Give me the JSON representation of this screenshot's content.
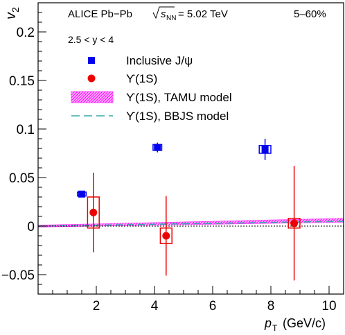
{
  "chart_data": {
    "type": "scatter",
    "header": {
      "collab": "ALICE Pb−Pb",
      "energy": "= 5.02 TeV",
      "sqrt_s": "s",
      "sqrt_s_sub": "NN",
      "centrality": "5–60%",
      "rapidity": "2.5 < y < 4"
    },
    "ylabel": {
      "main": "v",
      "sub": "2"
    },
    "xlabel": {
      "main": "p",
      "sub": "T",
      "unit": " (GeV/c)"
    },
    "xlim": [
      0,
      10.5
    ],
    "ylim": [
      -0.07,
      0.23
    ],
    "xticks": [
      {
        "value": 2,
        "label": "2"
      },
      {
        "value": 4,
        "label": "4"
      },
      {
        "value": 6,
        "label": "6"
      },
      {
        "value": 8,
        "label": "8"
      },
      {
        "value": 10,
        "label": "10"
      }
    ],
    "yticks": [
      {
        "value": -0.05,
        "label": "−0.05"
      },
      {
        "value": 0,
        "label": "0"
      },
      {
        "value": 0.05,
        "label": "0.05"
      },
      {
        "value": 0.1,
        "label": "0.1"
      },
      {
        "value": 0.15,
        "label": "0.15"
      },
      {
        "value": 0.2,
        "label": "0.2"
      }
    ],
    "legend": [
      {
        "label": "Inclusive J/ψ",
        "marker": "square",
        "color": "#0000ee"
      },
      {
        "label": "ϒ(1S)",
        "marker": "circle",
        "color": "#ee0000"
      },
      {
        "label": "ϒ(1S), TAMU model",
        "marker": "band",
        "color": "#ff33ff"
      },
      {
        "label": "ϒ(1S), BBJS model",
        "marker": "dashed",
        "color": "#33aaaa"
      }
    ],
    "series": [
      {
        "name": "Inclusive J/ψ",
        "color": "#0000ee",
        "points": [
          {
            "x": 1.5,
            "y": 0.033,
            "stat": 0.003,
            "sys_dx": 0.15,
            "sys": 0.002
          },
          {
            "x": 4.1,
            "y": 0.081,
            "stat": 0.005,
            "sys_dx": 0.15,
            "sys": 0.003
          },
          {
            "x": 7.8,
            "y": 0.079,
            "stat": 0.011,
            "sys_dx": 0.2,
            "sys": 0.004
          }
        ]
      },
      {
        "name": "ϒ(1S)",
        "color": "#ee0000",
        "points": [
          {
            "x": 1.9,
            "y": 0.014,
            "stat": 0.041,
            "sys_dx": 0.2,
            "sys": 0.016
          },
          {
            "x": 4.4,
            "y": -0.01,
            "stat": 0.041,
            "sys_dx": 0.2,
            "sys": 0.008
          },
          {
            "x": 8.8,
            "y": 0.003,
            "stat": 0.059,
            "sys_dx": 0.2,
            "sys": 0.005
          }
        ]
      }
    ],
    "models": [
      {
        "name": "ϒ(1S), TAMU model",
        "color": "#ff33ff",
        "x": [
          0,
          10.5
        ],
        "low": [
          -0.001,
          0.004
        ],
        "high": [
          0.001,
          0.008
        ]
      },
      {
        "name": "ϒ(1S), BBJS model",
        "color": "#33aaaa",
        "x": [
          0,
          10.5
        ],
        "y": [
          0,
          0.005
        ]
      }
    ],
    "zero_line": true,
    "grid": false
  }
}
